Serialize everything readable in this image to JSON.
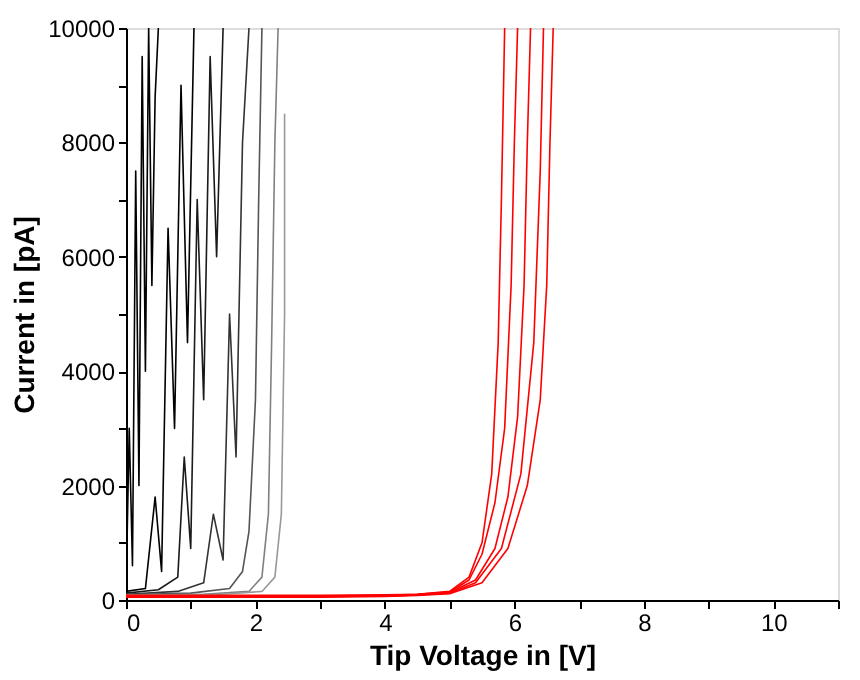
{
  "chart_data": {
    "type": "line",
    "xlabel": "Tip Voltage in [V]",
    "ylabel": "Current in [pA]",
    "xlim": [
      0,
      11
    ],
    "xticks": [
      0,
      {
        "value": 1,
        "label": null
      },
      2,
      {
        "value": 3,
        "label": null
      },
      4,
      {
        "value": 5,
        "label": null
      },
      6,
      {
        "value": 7,
        "label": null
      },
      8,
      {
        "value": 9,
        "label": null
      },
      10,
      {
        "value": 11,
        "label": null
      }
    ],
    "ylim": [
      0,
      10000
    ],
    "yticks": [
      0,
      {
        "value": 1000,
        "label": null
      },
      2000,
      {
        "value": 3000,
        "label": null
      },
      4000,
      {
        "value": 5000,
        "label": null
      },
      6000,
      {
        "value": 7000,
        "label": null
      },
      8000,
      {
        "value": 9000,
        "label": null
      },
      10000
    ],
    "grid": false,
    "legend": false,
    "marker": "none",
    "line_style": "solid",
    "series": [
      {
        "color": "#000000",
        "x": [
          0,
          0.05,
          0.1,
          0.15,
          0.2,
          0.25,
          0.3,
          0.35,
          0.4,
          0.45,
          0.5
        ],
        "values": [
          100,
          3000,
          600,
          7500,
          2000,
          9500,
          4000,
          10000,
          5500,
          8800,
          10000
        ]
      },
      {
        "color": "#000000",
        "x": [
          0,
          0.3,
          0.45,
          0.55,
          0.65,
          0.75,
          0.85,
          0.95,
          1.05
        ],
        "values": [
          150,
          200,
          1800,
          500,
          6500,
          3000,
          9000,
          4500,
          10000
        ]
      },
      {
        "color": "#1a1a1a",
        "x": [
          0,
          0.5,
          0.8,
          0.9,
          1.0,
          1.1,
          1.2,
          1.3,
          1.4,
          1.5
        ],
        "values": [
          120,
          180,
          400,
          2500,
          900,
          7000,
          3500,
          9500,
          6000,
          10000
        ]
      },
      {
        "color": "#333333",
        "x": [
          0,
          0.8,
          1.2,
          1.35,
          1.5,
          1.6,
          1.7,
          1.8,
          1.9
        ],
        "values": [
          100,
          150,
          300,
          1500,
          700,
          5000,
          2500,
          8000,
          10000
        ]
      },
      {
        "color": "#555555",
        "x": [
          0,
          1.0,
          1.6,
          1.8,
          1.9,
          2.0,
          2.05,
          2.1
        ],
        "values": [
          90,
          120,
          200,
          500,
          1200,
          3500,
          7000,
          10000
        ]
      },
      {
        "color": "#808080",
        "x": [
          0,
          1.2,
          1.9,
          2.1,
          2.2,
          2.25,
          2.3,
          2.35
        ],
        "values": [
          80,
          100,
          150,
          400,
          1500,
          4500,
          8000,
          10000
        ]
      },
      {
        "color": "#999999",
        "x": [
          0,
          1.5,
          2.1,
          2.3,
          2.4,
          2.45,
          2.45
        ],
        "values": [
          80,
          100,
          150,
          400,
          1500,
          5000,
          8500
        ]
      },
      {
        "color": "#ff0000",
        "x": [
          0,
          1,
          2,
          3,
          4,
          4.5,
          5,
          5.3,
          5.5,
          5.65,
          5.75,
          5.8,
          5.85
        ],
        "values": [
          80,
          80,
          80,
          80,
          90,
          100,
          150,
          400,
          1000,
          2200,
          4500,
          7000,
          10000
        ]
      },
      {
        "color": "#ff0000",
        "x": [
          0,
          1,
          2,
          3,
          4,
          4.5,
          5,
          5.3,
          5.5,
          5.7,
          5.85,
          5.95,
          6.0,
          6.05
        ],
        "values": [
          70,
          70,
          70,
          70,
          80,
          100,
          140,
          350,
          800,
          1700,
          3000,
          5500,
          8000,
          10000
        ]
      },
      {
        "color": "#ff0000",
        "x": [
          0,
          1,
          2,
          3,
          4,
          4.5,
          5,
          5.4,
          5.7,
          5.9,
          6.05,
          6.15,
          6.2,
          6.25
        ],
        "values": [
          60,
          60,
          60,
          60,
          70,
          90,
          130,
          350,
          900,
          1800,
          3200,
          5500,
          8000,
          10000
        ]
      },
      {
        "color": "#ff0000",
        "x": [
          0,
          1,
          2,
          3,
          4,
          4.5,
          5,
          5.4,
          5.8,
          6.1,
          6.3,
          6.4,
          6.45
        ],
        "values": [
          60,
          60,
          60,
          60,
          70,
          90,
          120,
          300,
          900,
          2200,
          4500,
          7500,
          10000
        ]
      },
      {
        "color": "#ff0000",
        "x": [
          0,
          1,
          2,
          3,
          4,
          4.5,
          5,
          5.5,
          5.9,
          6.2,
          6.4,
          6.5,
          6.55,
          6.6
        ],
        "values": [
          50,
          50,
          50,
          50,
          60,
          80,
          110,
          300,
          900,
          2000,
          3500,
          5500,
          8000,
          10000
        ]
      }
    ]
  }
}
